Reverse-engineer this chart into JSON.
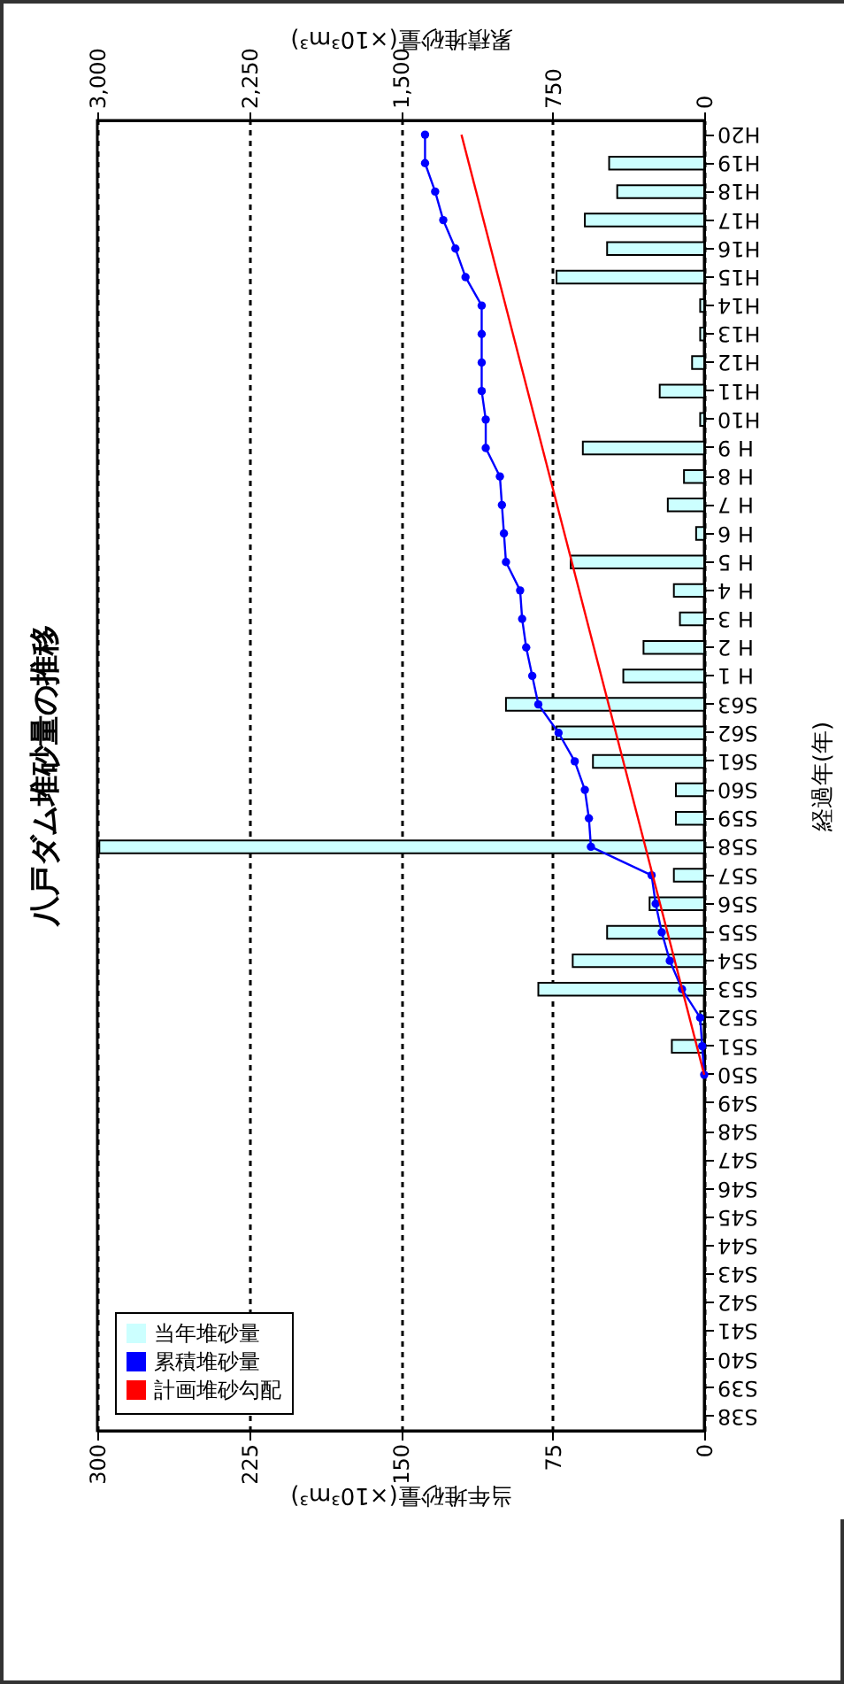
{
  "chart_data": {
    "type": "bar",
    "orientation": "horizontal",
    "title": "八戸ダム堆砂量の推移",
    "ylabel": "経過年(年)",
    "xlabel": "当年堆砂量(×10³m³)",
    "x2label": "累積堆砂量(×10³m³)",
    "categories": [
      "H20",
      "H19",
      "H18",
      "H17",
      "H16",
      "H15",
      "H14",
      "H13",
      "H12",
      "H11",
      "H10",
      "H 9",
      "H 8",
      "H 7",
      "H 6",
      "H 5",
      "H 4",
      "H 3",
      "H 2",
      "H 1",
      "S63",
      "S62",
      "S61",
      "S60",
      "S59",
      "S58",
      "S57",
      "S56",
      "S55",
      "S54",
      "S53",
      "S52",
      "S51",
      "S50",
      "S49",
      "S48",
      "S47",
      "S46",
      "S45",
      "S44",
      "S43",
      "S42",
      "S41",
      "S40",
      "S39",
      "S38"
    ],
    "series": [
      {
        "name": "当年堆砂量",
        "color": "#ccffff",
        "values": [
          null,
          47,
          43,
          59,
          48,
          73,
          2,
          2,
          6,
          22,
          2,
          60,
          10,
          18,
          4,
          66,
          15,
          12,
          30,
          40,
          98,
          73,
          55,
          14,
          14,
          299,
          15,
          27,
          48,
          65,
          82,
          2,
          16,
          null,
          null,
          null,
          null,
          null,
          null,
          null,
          null,
          null,
          null,
          null,
          null,
          null
        ]
      },
      {
        "name": "累積堆砂量",
        "type": "line",
        "axis": "x2",
        "color": "#0000ff",
        "marker": "circle",
        "values": [
          1380,
          1380,
          1330,
          1290,
          1230,
          1180,
          1100,
          1100,
          1100,
          1100,
          1080,
          1080,
          1010,
          1000,
          990,
          980,
          910,
          900,
          880,
          850,
          820,
          720,
          640,
          590,
          570,
          560,
          260,
          240,
          210,
          170,
          110,
          20,
          10,
          0,
          null,
          null,
          null,
          null,
          null,
          null,
          null,
          null,
          null,
          null,
          null,
          null
        ]
      },
      {
        "name": "計画堆砂勾配",
        "type": "line",
        "axis": "x2",
        "color": "#ff0000",
        "marker": "none",
        "values": [
          1200,
          null,
          null,
          null,
          null,
          null,
          null,
          null,
          null,
          null,
          null,
          null,
          null,
          null,
          null,
          null,
          null,
          null,
          null,
          null,
          null,
          null,
          null,
          null,
          null,
          null,
          null,
          null,
          null,
          null,
          null,
          null,
          null,
          0,
          null,
          null,
          null,
          null,
          null,
          null,
          null,
          null,
          null,
          null,
          null,
          null
        ]
      }
    ],
    "xlim": [
      300,
      0
    ],
    "xticks": [
      0,
      75,
      150,
      225,
      300
    ],
    "x2lim": [
      3000,
      0
    ],
    "x2ticks": [
      0,
      {
        "value": 750,
        "label": "750"
      },
      {
        "value": 1500,
        "label": "1,500"
      },
      {
        "value": 2250,
        "label": "2,250"
      },
      {
        "value": 3000,
        "label": "3,000"
      }
    ],
    "grid": "x",
    "legend": "bottom left"
  }
}
